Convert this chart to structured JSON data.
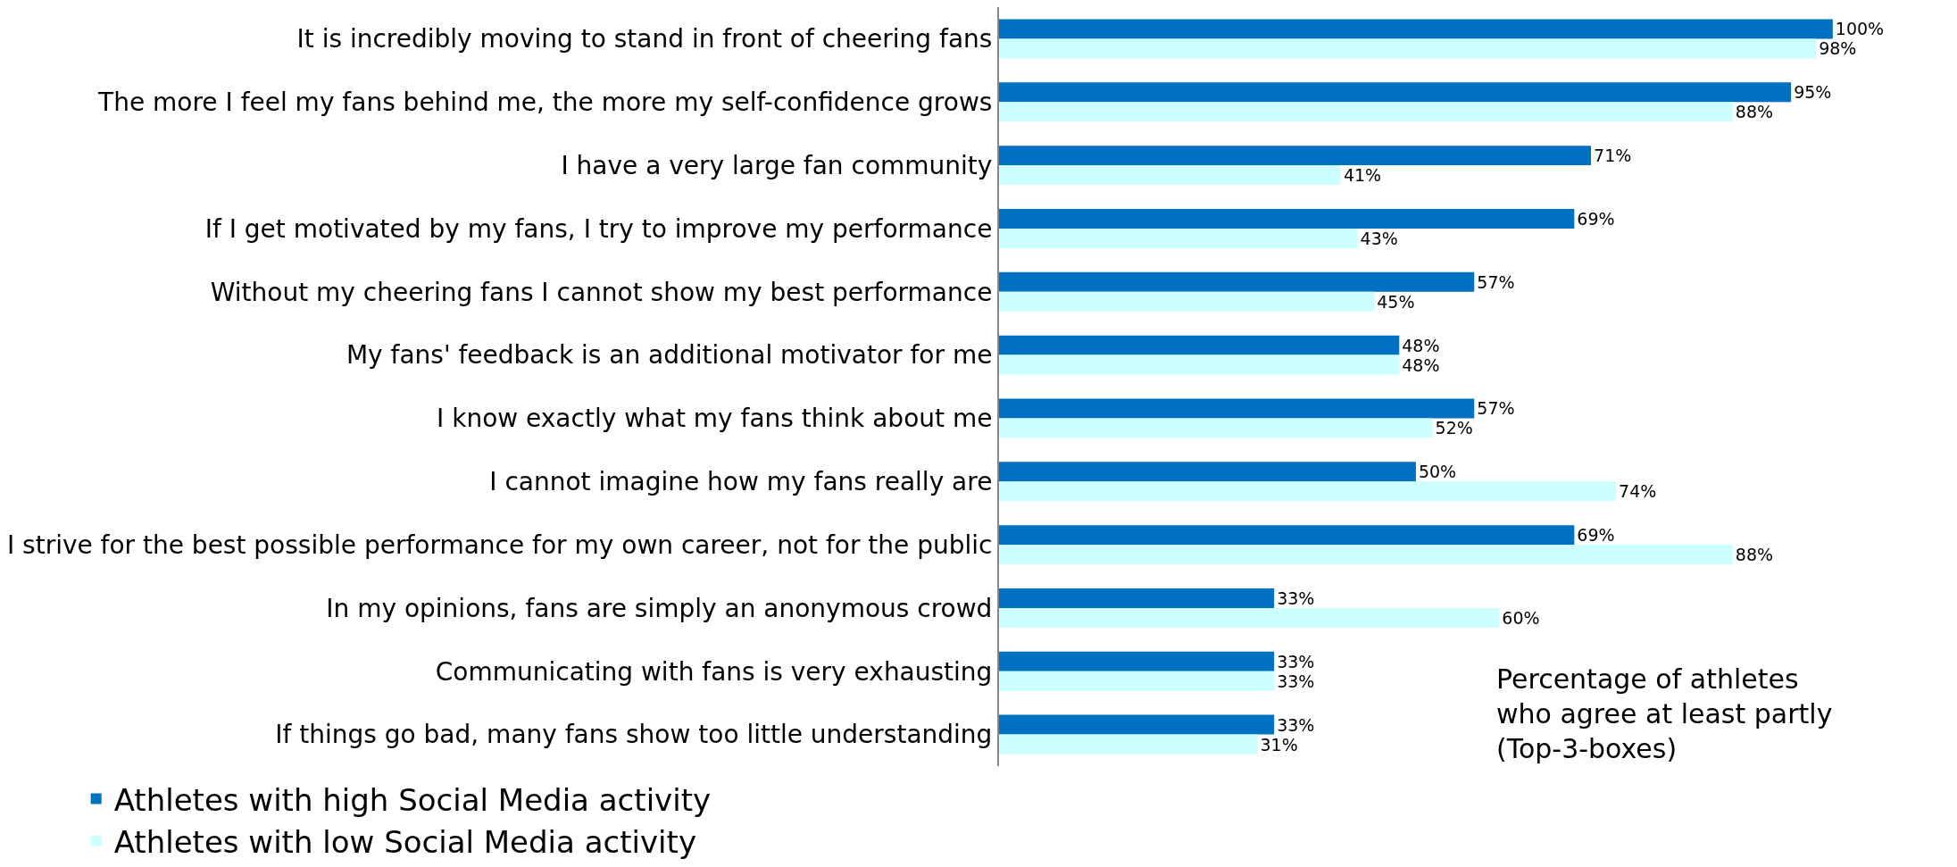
{
  "chart_data": {
    "type": "bar",
    "orientation": "horizontal",
    "categories": [
      "It is incredibly moving to stand in front of cheering fans",
      "The more I feel my fans behind me, the more my self-confidence grows",
      "I have a very large fan community",
      "If I get motivated by my fans, I try to improve my performance",
      "Without my cheering fans I cannot show my best performance",
      "My fans' feedback is an additional motivator for me",
      "I know exactly what my fans think about me",
      "I cannot imagine how my fans really are",
      "I strive for the best possible performance for my own career, not for the public",
      "In my opinions, fans are simply an anonymous crowd",
      "Communicating with fans is very exhausting",
      "If things go bad, many fans show too little understanding"
    ],
    "series": [
      {
        "name": "Athletes with high Social Media activity",
        "color": "#0070c0",
        "values": [
          100,
          95,
          71,
          69,
          57,
          48,
          57,
          50,
          69,
          33,
          33,
          33
        ],
        "value_labels": [
          "100%",
          "95%",
          "71%",
          "69%",
          "57%",
          "48%",
          "57%",
          "50%",
          "69%",
          "33%",
          "33%",
          "33%"
        ]
      },
      {
        "name": "Athletes with low Social Media activity",
        "color": "#ccffff",
        "values": [
          98,
          88,
          41,
          43,
          45,
          48,
          52,
          74,
          88,
          60,
          33,
          31
        ],
        "value_labels": [
          "98%",
          "88%",
          "41%",
          "43%",
          "45%",
          "48%",
          "52%",
          "74%",
          "88%",
          "60%",
          "33%",
          "31%"
        ]
      }
    ],
    "annotations": [
      "Percentage of athletes\nwho agree at least partly\n(Top-3-boxes)"
    ],
    "legend": "bottom",
    "grid": false
  }
}
